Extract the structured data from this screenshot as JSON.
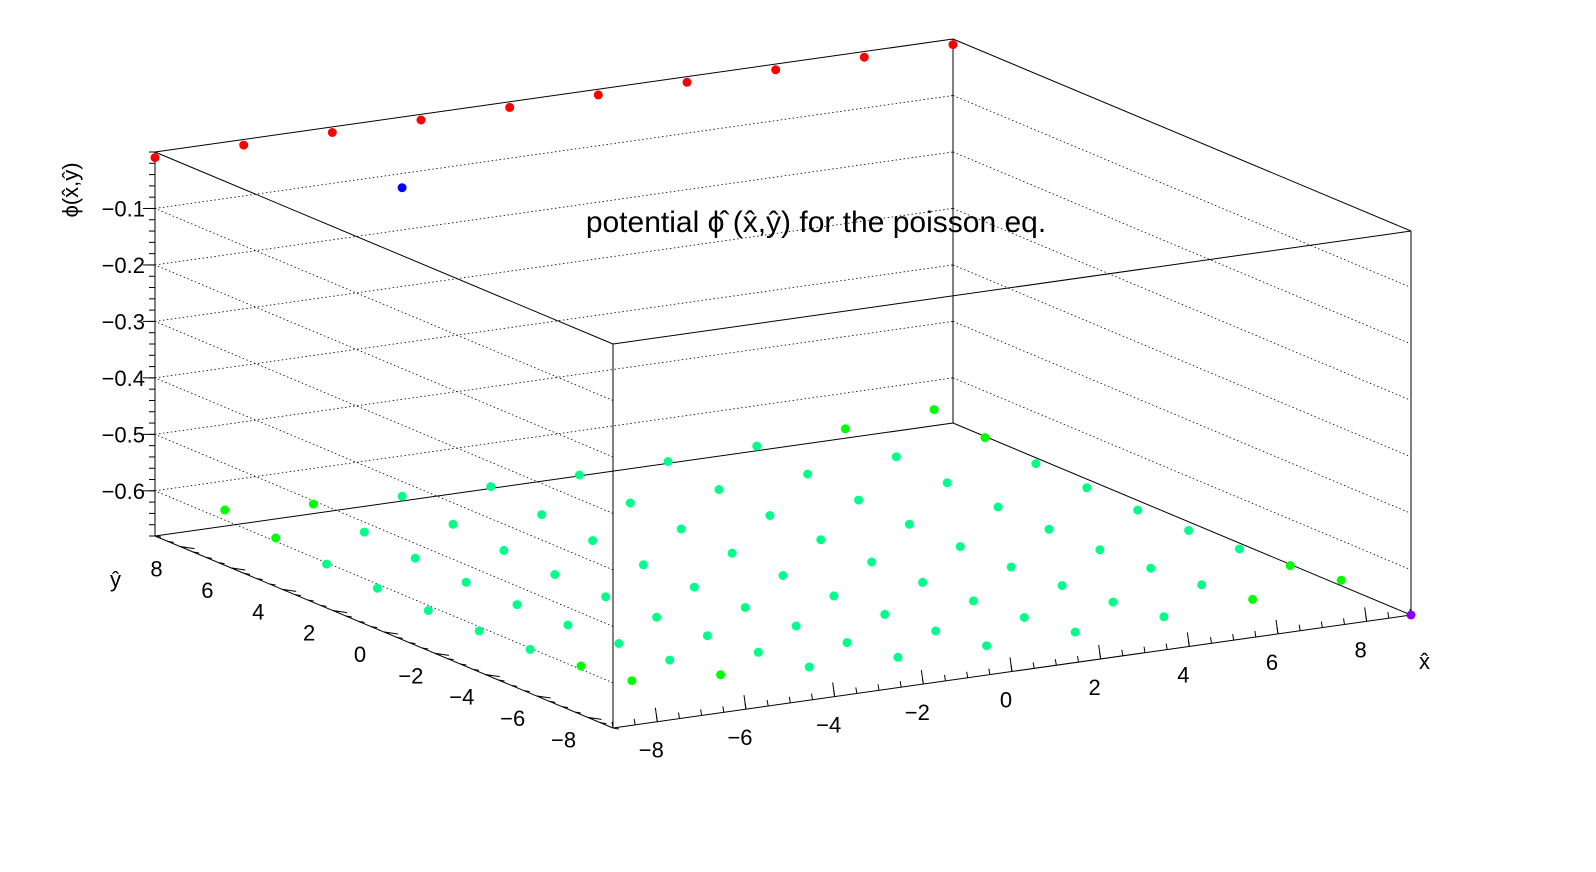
{
  "chart_data": {
    "type": "scatter",
    "title": "potential ϕ̂ (x̂,ŷ) for the poisson eq.",
    "xlabel": "x̂",
    "ylabel": "ŷ",
    "zlabel": "ϕ(x̂,ŷ)",
    "xlim": [
      -9,
      9
    ],
    "ylim": [
      -9,
      9
    ],
    "zlim": [
      -0.68,
      0.0
    ],
    "x_ticks": [
      "−8",
      "−6",
      "−4",
      "−2",
      "0",
      "2",
      "4",
      "6",
      "8"
    ],
    "y_ticks": [
      "−8",
      "−6",
      "−4",
      "−2",
      "0",
      "2",
      "4",
      "6",
      "8"
    ],
    "z_ticks": [
      "−0.1",
      "−0.2",
      "−0.3",
      "−0.4",
      "−0.5",
      "−0.6"
    ],
    "grid": true,
    "grid_count": 9,
    "grid_range": [
      -8,
      8
    ],
    "point_model": "phi(x,y) = -0.68 + 0.00042 * (x^2 + y^2)  (approximate)",
    "special_points": [
      {
        "x": -4,
        "y": 8,
        "z": -0.1,
        "color": "#0000ff"
      },
      {
        "x": 9,
        "y": -9,
        "z": -0.68,
        "color": "#8800ff"
      }
    ],
    "colors": {
      "frame": "#000000",
      "palette": [
        "#ff0000",
        "#ff4400",
        "#ff7700",
        "#ff9900",
        "#ffcc00",
        "#ffff00",
        "#aaff00",
        "#55ff00",
        "#00ff00",
        "#00ff88",
        "#0000ff",
        "#8800ff"
      ]
    }
  }
}
